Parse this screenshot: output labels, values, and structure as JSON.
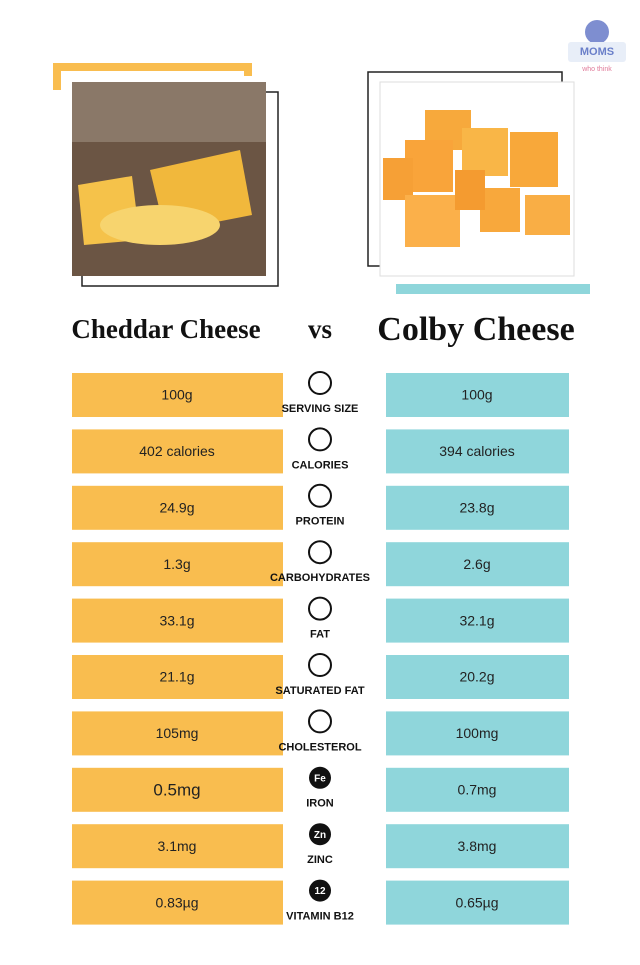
{
  "logo": {
    "name": "MOMS",
    "tagline": "who think"
  },
  "header": {
    "left_title": "Cheddar Cheese",
    "versus": "vs",
    "right_title": "Colby Cheese"
  },
  "rows": [
    {
      "left": "100g",
      "label": "SERVING SIZE",
      "right": "100g"
    },
    {
      "left": "402 calories",
      "label": "CALORIES",
      "right": "394 calories"
    },
    {
      "left": "24.9g",
      "label": "PROTEIN",
      "right": "23.8g"
    },
    {
      "left": "1.3g",
      "label": "CARBOHYDRATES",
      "right": "2.6g"
    },
    {
      "left": "33.1g",
      "label": "FAT",
      "right": "32.1g"
    },
    {
      "left": "21.1g",
      "label": "SATURATED FAT",
      "right": "20.2g"
    },
    {
      "left": "105mg",
      "label": "CHOLESTEROL",
      "right": "100mg"
    },
    {
      "left": "0.5mg",
      "label": "IRON",
      "right": "0.7mg",
      "icon_text": "Fe"
    },
    {
      "left": "3.1mg",
      "label": "ZINC",
      "right": "3.8mg",
      "icon_text": "Zn"
    },
    {
      "left": "0.83µg",
      "label": "VITAMIN B12",
      "right": "0.65µg",
      "icon_text": "12"
    }
  ]
}
